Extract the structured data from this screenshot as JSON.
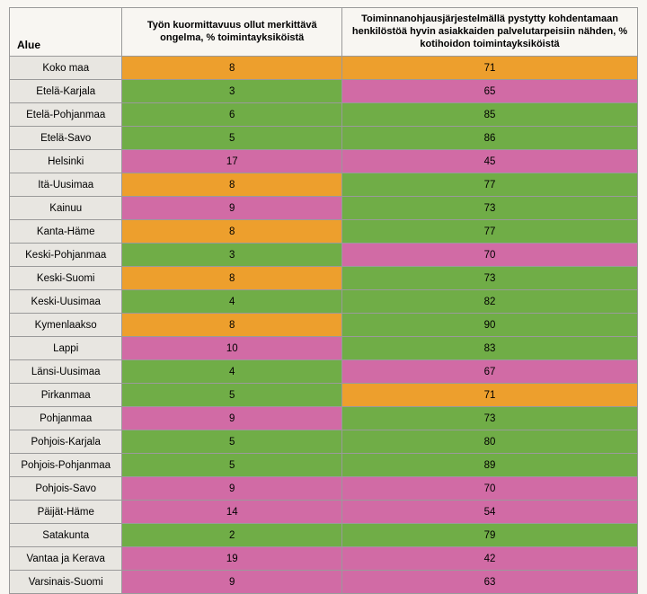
{
  "colors": {
    "background": "#f8f6f2",
    "row_label_bg": "#e8e6e1",
    "border": "#9a9a9a",
    "green": "#70ad47",
    "orange": "#ed9f2d",
    "pink": "#d16ba5"
  },
  "headers": {
    "region": "Alue",
    "col1": "Työn kuormittavuus ollut merkittävä ongelma, % toimintayksiköistä",
    "col2": "Toiminnanohjausjärjestelmällä pystytty kohdentamaan henkilöstöä hyvin asiakkaiden palvelutarpeisiin nähden, % kotihoidon toimintayksiköistä"
  },
  "rows": [
    {
      "region": "Koko maa",
      "v1": 8,
      "c1": "orange",
      "v2": 71,
      "c2": "orange"
    },
    {
      "region": "Etelä-Karjala",
      "v1": 3,
      "c1": "green",
      "v2": 65,
      "c2": "pink"
    },
    {
      "region": "Etelä-Pohjanmaa",
      "v1": 6,
      "c1": "green",
      "v2": 85,
      "c2": "green"
    },
    {
      "region": "Etelä-Savo",
      "v1": 5,
      "c1": "green",
      "v2": 86,
      "c2": "green"
    },
    {
      "region": "Helsinki",
      "v1": 17,
      "c1": "pink",
      "v2": 45,
      "c2": "pink"
    },
    {
      "region": "Itä-Uusimaa",
      "v1": 8,
      "c1": "orange",
      "v2": 77,
      "c2": "green"
    },
    {
      "region": "Kainuu",
      "v1": 9,
      "c1": "pink",
      "v2": 73,
      "c2": "green"
    },
    {
      "region": "Kanta-Häme",
      "v1": 8,
      "c1": "orange",
      "v2": 77,
      "c2": "green"
    },
    {
      "region": "Keski-Pohjanmaa",
      "v1": 3,
      "c1": "green",
      "v2": 70,
      "c2": "pink"
    },
    {
      "region": "Keski-Suomi",
      "v1": 8,
      "c1": "orange",
      "v2": 73,
      "c2": "green"
    },
    {
      "region": "Keski-Uusimaa",
      "v1": 4,
      "c1": "green",
      "v2": 82,
      "c2": "green"
    },
    {
      "region": "Kymenlaakso",
      "v1": 8,
      "c1": "orange",
      "v2": 90,
      "c2": "green"
    },
    {
      "region": "Lappi",
      "v1": 10,
      "c1": "pink",
      "v2": 83,
      "c2": "green"
    },
    {
      "region": "Länsi-Uusimaa",
      "v1": 4,
      "c1": "green",
      "v2": 67,
      "c2": "pink"
    },
    {
      "region": "Pirkanmaa",
      "v1": 5,
      "c1": "green",
      "v2": 71,
      "c2": "orange"
    },
    {
      "region": "Pohjanmaa",
      "v1": 9,
      "c1": "pink",
      "v2": 73,
      "c2": "green"
    },
    {
      "region": "Pohjois-Karjala",
      "v1": 5,
      "c1": "green",
      "v2": 80,
      "c2": "green"
    },
    {
      "region": "Pohjois-Pohjanmaa",
      "v1": 5,
      "c1": "green",
      "v2": 89,
      "c2": "green"
    },
    {
      "region": "Pohjois-Savo",
      "v1": 9,
      "c1": "pink",
      "v2": 70,
      "c2": "pink"
    },
    {
      "region": "Päijät-Häme",
      "v1": 14,
      "c1": "pink",
      "v2": 54,
      "c2": "pink"
    },
    {
      "region": "Satakunta",
      "v1": 2,
      "c1": "green",
      "v2": 79,
      "c2": "green"
    },
    {
      "region": "Vantaa ja Kerava",
      "v1": 19,
      "c1": "pink",
      "v2": 42,
      "c2": "pink"
    },
    {
      "region": "Varsinais-Suomi",
      "v1": 9,
      "c1": "pink",
      "v2": 63,
      "c2": "pink"
    }
  ],
  "fonts": {
    "header_size_pt": 11,
    "cell_size_pt": 11.5
  }
}
